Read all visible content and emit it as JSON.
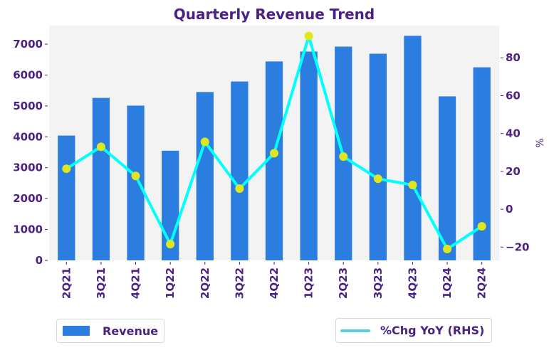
{
  "chart_data": {
    "type": "bar+line",
    "title": "Quarterly Revenue Trend",
    "categories": [
      "2Q21",
      "3Q21",
      "4Q21",
      "1Q22",
      "2Q22",
      "3Q22",
      "4Q22",
      "1Q23",
      "2Q23",
      "3Q23",
      "4Q23",
      "1Q24",
      "2Q24"
    ],
    "series": [
      {
        "name": "Revenue",
        "type": "bar",
        "axis": "left",
        "color": "#2b7de0",
        "values": [
          4040,
          5260,
          5010,
          3550,
          5450,
          5790,
          6440,
          6760,
          6920,
          6690,
          7270,
          5310,
          6250
        ]
      },
      {
        "name": "%Chg YoY (RHS)",
        "type": "line",
        "axis": "right",
        "color": "#00ffff",
        "marker_color": "#dfe61d",
        "legend_color": "#5bd0dc",
        "values": [
          21.4,
          33.0,
          17.6,
          -18.4,
          35.6,
          10.9,
          29.6,
          91.5,
          27.8,
          16.1,
          12.8,
          -21.0,
          -9.0
        ]
      }
    ],
    "left_axis": {
      "label": "",
      "ylim": [
        0,
        7600
      ],
      "ticks": [
        0,
        1000,
        2000,
        3000,
        4000,
        5000,
        6000,
        7000
      ]
    },
    "right_axis": {
      "label": "%",
      "ylim": [
        -27,
        97
      ],
      "ticks": [
        -20,
        0,
        20,
        40,
        60,
        80
      ],
      "tick_labels": [
        "−20",
        "0",
        "20",
        "40",
        "60",
        "80"
      ]
    },
    "xlabel": "",
    "grid": false,
    "background": "#f3f3f3",
    "text_color": "#4b2183",
    "legend": [
      {
        "label": "Revenue",
        "placement": "bottom-left"
      },
      {
        "label": "%Chg YoY (RHS)",
        "placement": "bottom-right"
      }
    ]
  }
}
